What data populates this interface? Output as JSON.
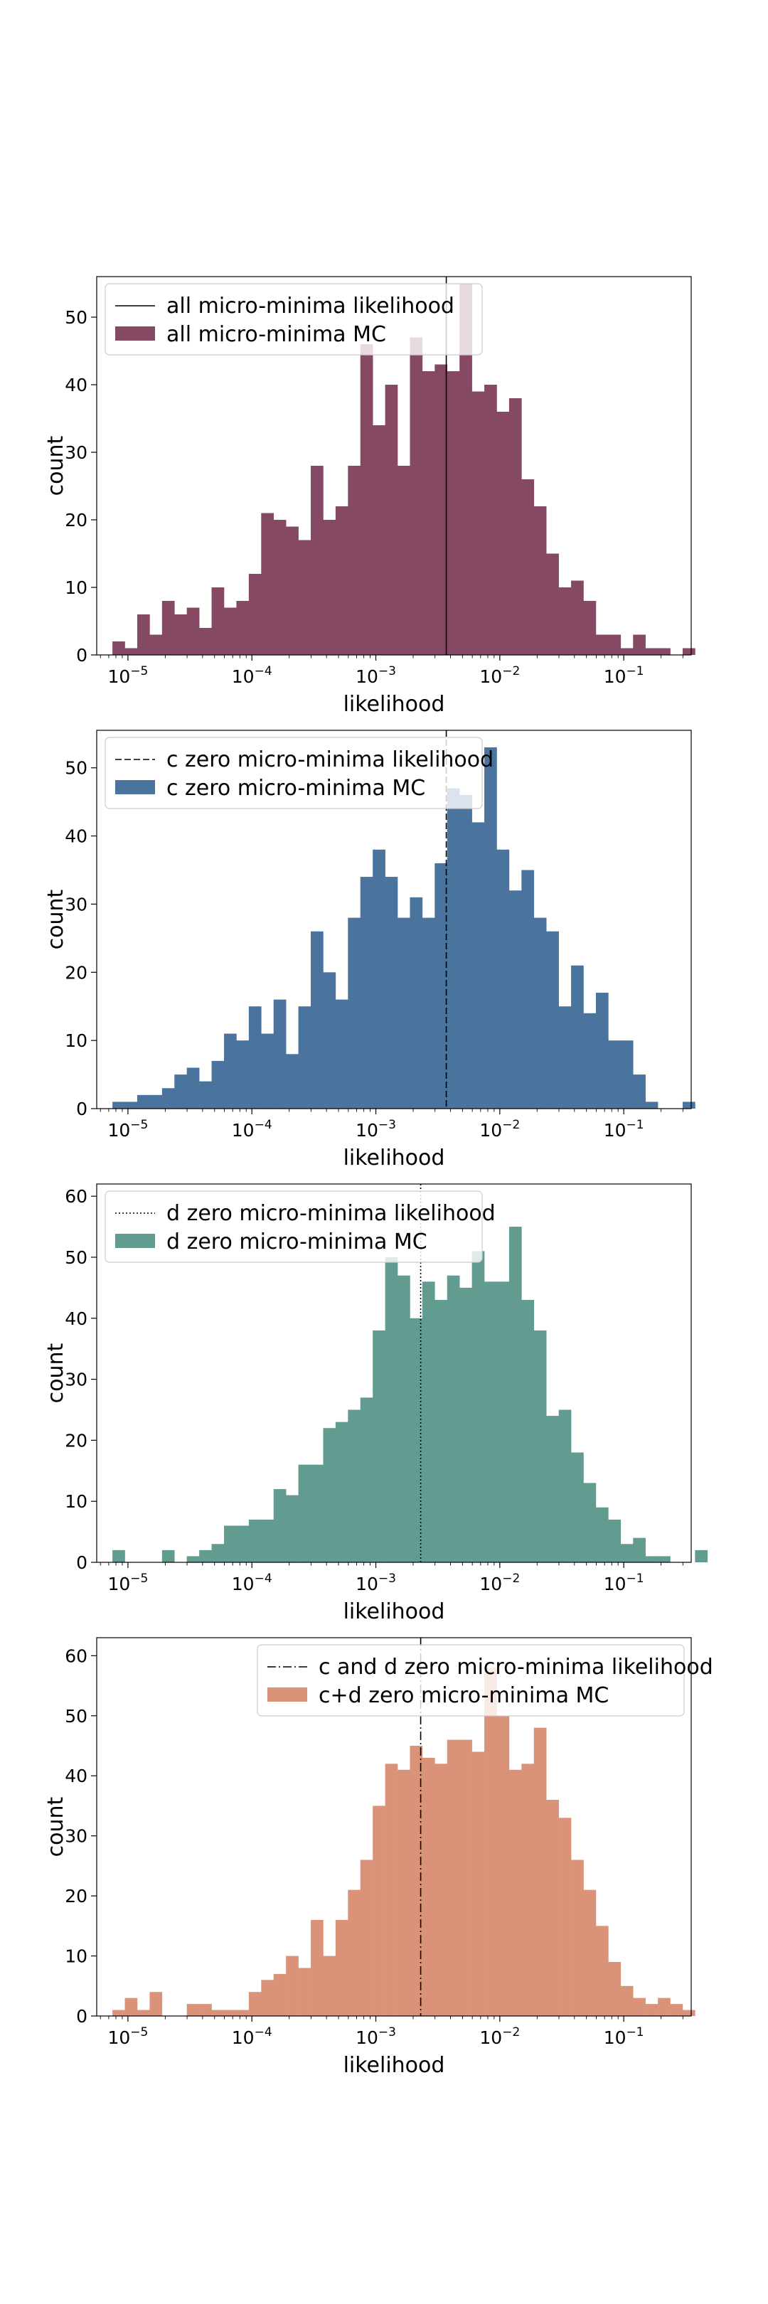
{
  "chart_data": [
    {
      "type": "bar",
      "xlabel": "likelihood",
      "ylabel": "count",
      "xscale": "log",
      "xlim": [
        5.6e-06,
        0.35
      ],
      "ylim": [
        0,
        56
      ],
      "yticks": [
        0,
        10,
        20,
        30,
        40,
        50
      ],
      "xticks": [
        1e-05,
        0.0001,
        0.001,
        0.01,
        0.1
      ],
      "xtick_labels": [
        "10-5",
        "10-4",
        "10-3",
        "10-2",
        "10-1"
      ],
      "legend_placement": "upper-left",
      "bin_start_log10": -5.125,
      "bin_width_log10": 0.1,
      "series": [
        {
          "name": "all micro-minima MC",
          "color": "#854964",
          "values": [
            2,
            1,
            6,
            3,
            8,
            6,
            7,
            4,
            10,
            7,
            8,
            12,
            21,
            20,
            19,
            17,
            28,
            20,
            22,
            28,
            46,
            34,
            40,
            28,
            47,
            42,
            43,
            42,
            55,
            39,
            40,
            36,
            38,
            26,
            22,
            15,
            10,
            11,
            8,
            3,
            3,
            1,
            3,
            1,
            1,
            0,
            1,
            0
          ]
        }
      ],
      "reference_line": {
        "name": "all micro-minima likelihood",
        "x": 0.0037,
        "style": "solid"
      }
    },
    {
      "type": "bar",
      "xlabel": "likelihood",
      "ylabel": "count",
      "xscale": "log",
      "xlim": [
        5.6e-06,
        0.35
      ],
      "ylim": [
        0,
        55.5
      ],
      "yticks": [
        0,
        10,
        20,
        30,
        40,
        50
      ],
      "xticks": [
        1e-05,
        0.0001,
        0.001,
        0.01,
        0.1
      ],
      "xtick_labels": [
        "10-5",
        "10-4",
        "10-3",
        "10-2",
        "10-1"
      ],
      "legend_placement": "upper-left",
      "bin_start_log10": -5.125,
      "bin_width_log10": 0.1,
      "series": [
        {
          "name": "c zero micro-minima MC",
          "color": "#4a739e",
          "values": [
            1,
            1,
            2,
            2,
            3,
            5,
            6,
            4,
            7,
            11,
            10,
            15,
            11,
            16,
            8,
            15,
            26,
            20,
            16,
            28,
            34,
            38,
            34,
            28,
            31,
            28,
            36,
            47,
            46,
            42,
            53,
            38,
            32,
            35,
            28,
            26,
            15,
            21,
            14,
            17,
            10,
            10,
            5,
            1,
            0,
            0,
            1
          ]
        }
      ],
      "reference_line": {
        "name": "c zero micro-minima likelihood",
        "x": 0.0037,
        "style": "dashed"
      }
    },
    {
      "type": "bar",
      "xlabel": "likelihood",
      "ylabel": "count",
      "xscale": "log",
      "xlim": [
        5.6e-06,
        0.35
      ],
      "ylim": [
        0,
        62
      ],
      "yticks": [
        0,
        10,
        20,
        30,
        40,
        50,
        60
      ],
      "xticks": [
        1e-05,
        0.0001,
        0.001,
        0.01,
        0.1
      ],
      "xtick_labels": [
        "10-5",
        "10-4",
        "10-3",
        "10-2",
        "10-1"
      ],
      "legend_placement": "upper-left",
      "bin_start_log10": -5.125,
      "bin_width_log10": 0.1,
      "series": [
        {
          "name": "d zero micro-minima MC",
          "color": "#629c90",
          "values": [
            2,
            0,
            0,
            0,
            2,
            0,
            1,
            2,
            3,
            6,
            6,
            7,
            7,
            12,
            11,
            16,
            16,
            22,
            23,
            25,
            27,
            38,
            50,
            47,
            40,
            46,
            43,
            47,
            45,
            51,
            46,
            46,
            55,
            43,
            38,
            24,
            25,
            18,
            13,
            9,
            7,
            3,
            4,
            1,
            1,
            0,
            0,
            2
          ]
        }
      ],
      "reference_line": {
        "name": "d zero micro-minima likelihood",
        "x": 0.0023,
        "style": "dotted"
      }
    },
    {
      "type": "bar",
      "xlabel": "likelihood",
      "ylabel": "count",
      "xscale": "log",
      "xlim": [
        5.6e-06,
        0.35
      ],
      "ylim": [
        0,
        63
      ],
      "yticks": [
        0,
        10,
        20,
        30,
        40,
        50,
        60
      ],
      "xticks": [
        1e-05,
        0.0001,
        0.001,
        0.01,
        0.1
      ],
      "xtick_labels": [
        "10-5",
        "10-4",
        "10-3",
        "10-2",
        "10-1"
      ],
      "legend_placement": "upper-right",
      "bin_start_log10": -5.125,
      "bin_width_log10": 0.1,
      "series": [
        {
          "name": "c+d zero micro-minima MC",
          "color": "#da9378",
          "values": [
            1,
            3,
            1,
            4,
            0,
            0,
            2,
            2,
            1,
            1,
            1,
            4,
            6,
            7,
            10,
            8,
            16,
            10,
            16,
            21,
            26,
            35,
            42,
            41,
            45,
            43,
            42,
            46,
            46,
            44,
            58,
            50,
            41,
            42,
            48,
            36,
            33,
            26,
            21,
            15,
            9,
            5,
            3,
            2,
            3,
            2,
            1
          ]
        }
      ],
      "reference_line": {
        "name": "c and d zero micro-minima likelihood",
        "x": 0.0023,
        "style": "dashdot"
      }
    }
  ]
}
